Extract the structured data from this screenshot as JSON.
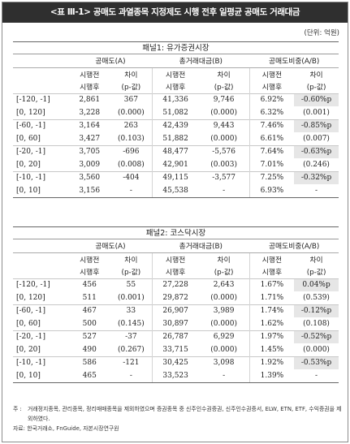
{
  "title": "<표 Ⅲ-1> 공매도 과열종목 지정제도 시행 전후 일평균 공매도 거래대금",
  "unit": "(단위: 억원)",
  "headers": {
    "short": "공매도(A)",
    "total": "총거래대금(B)",
    "ratio": "공매도비중(A/B)",
    "before": "시행전",
    "after": "시행후",
    "diff": "차이",
    "pval": "(p-값)"
  },
  "panels": [
    {
      "title": "패널1: 유가증권시장",
      "rows": [
        {
          "w1": "[-120, -1]",
          "w2": "[0, 120]",
          "a_b": "2,861",
          "a_a": "3,228",
          "a_d": "367",
          "a_p": "(0.000)",
          "b_b": "41,336",
          "b_a": "51,082",
          "b_d": "9,746",
          "b_p": "(0.000)",
          "r_b": "6.92%",
          "r_a": "6.32%",
          "r_d": "-0.60%p",
          "r_p": "(0.001)"
        },
        {
          "w1": "[-60, -1]",
          "w2": "[0, 60]",
          "a_b": "3,164",
          "a_a": "3,427",
          "a_d": "263",
          "a_p": "(0.103)",
          "b_b": "42,439",
          "b_a": "51,882",
          "b_d": "9,443",
          "b_p": "(0.000)",
          "r_b": "7.46%",
          "r_a": "6.61%",
          "r_d": "-0.85%p",
          "r_p": "(0.007)"
        },
        {
          "w1": "[-20, -1]",
          "w2": "[0, 20]",
          "a_b": "3,705",
          "a_a": "3,009",
          "a_d": "-696",
          "a_p": "(0.008)",
          "b_b": "48,477",
          "b_a": "42,901",
          "b_d": "-5,576",
          "b_p": "(0.003)",
          "r_b": "7.64%",
          "r_a": "7.01%",
          "r_d": "-0.63%p",
          "r_p": "(0.246)"
        },
        {
          "w1": "[-10, -1]",
          "w2": "[0, 10]",
          "a_b": "3,560",
          "a_a": "3,156",
          "a_d": "-404",
          "a_p": "-",
          "b_b": "49,115",
          "b_a": "45,538",
          "b_d": "-3,577",
          "b_p": "-",
          "r_b": "7.25%",
          "r_a": "6.93%",
          "r_d": "-0.32%p",
          "r_p": "-"
        }
      ]
    },
    {
      "title": "패널2: 코스닥시장",
      "rows": [
        {
          "w1": "[-120, -1]",
          "w2": "[0, 120]",
          "a_b": "456",
          "a_a": "511",
          "a_d": "55",
          "a_p": "(0.001)",
          "b_b": "27,228",
          "b_a": "29,872",
          "b_d": "2,643",
          "b_p": "(0.000)",
          "r_b": "1.67%",
          "r_a": "1.71%",
          "r_d": "0.04%p",
          "r_p": "(0.539)"
        },
        {
          "w1": "[-60, -1]",
          "w2": "[0, 60]",
          "a_b": "467",
          "a_a": "500",
          "a_d": "33",
          "a_p": "(0.145)",
          "b_b": "26,907",
          "b_a": "30,897",
          "b_d": "3,989",
          "b_p": "(0.000)",
          "r_b": "1.74%",
          "r_a": "1.62%",
          "r_d": "-0.12%p",
          "r_p": "(0.108)"
        },
        {
          "w1": "[-20, -1]",
          "w2": "[0, 20]",
          "a_b": "527",
          "a_a": "490",
          "a_d": "-37",
          "a_p": "(0.267)",
          "b_b": "26,787",
          "b_a": "33,715",
          "b_d": "6,929",
          "b_p": "(0.000)",
          "r_b": "1.97%",
          "r_a": "1.45%",
          "r_d": "-0.52%p",
          "r_p": "(0.000)"
        },
        {
          "w1": "[-10, -1]",
          "w2": "[0, 10]",
          "a_b": "586",
          "a_a": "465",
          "a_d": "-121",
          "a_p": "-",
          "b_b": "30,425",
          "b_a": "33,523",
          "b_d": "3,098",
          "b_p": "-",
          "r_b": "1.92%",
          "r_a": "1.39%",
          "r_d": "-0.53%p",
          "r_p": "-"
        }
      ]
    }
  ],
  "notes": {
    "note_label": "주 :",
    "note_text": "거래정지종목, 관리종목, 정리매매종목을 제외하였으며 증권종목 중 신주인수권증권, 신주인수권증서, ELW, ETN, ETF, 수익증권을 제외하였다.",
    "source": "자료: 한국거래소, FnGuide, 자본시장연구원"
  }
}
